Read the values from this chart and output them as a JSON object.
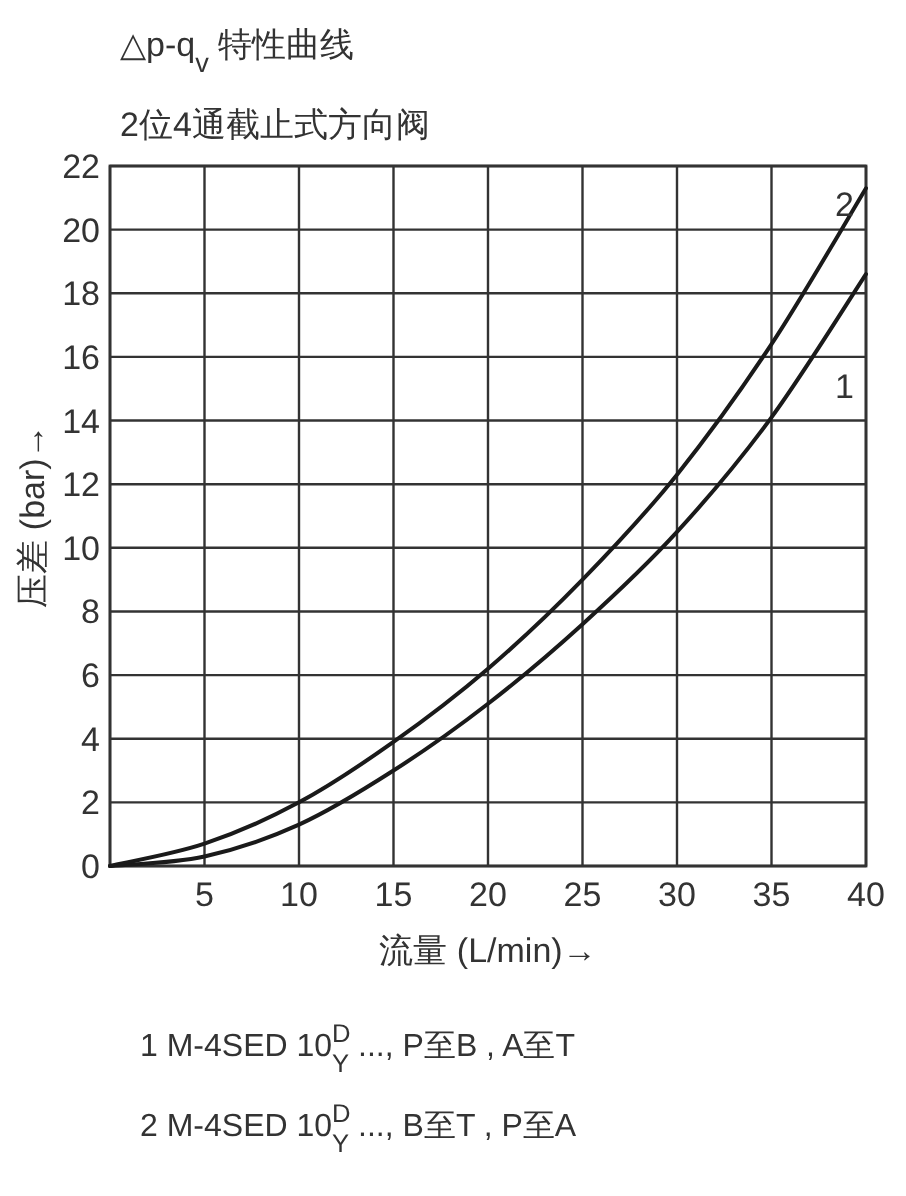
{
  "chart_data": {
    "type": "line",
    "title": "△p-q$_{v}$ 特性曲线",
    "subtitle": "2位4通截止式方向阀",
    "xlabel": "流量 (L/min)→",
    "ylabel": "压差 (bar)→",
    "xlim": [
      0,
      40
    ],
    "xticks": [
      {
        "value": 0,
        "label": null
      },
      5,
      10,
      15,
      20,
      25,
      30,
      35,
      40
    ],
    "ylim": [
      0,
      22
    ],
    "yticks": [
      0,
      2,
      4,
      6,
      8,
      10,
      12,
      14,
      16,
      18,
      20,
      22
    ],
    "grid": true,
    "x": [
      0,
      5,
      10,
      15,
      20,
      25,
      30,
      35,
      40
    ],
    "series": [
      {
        "name": "1",
        "color": "#1a1a1a",
        "values": [
          0,
          0.3,
          1.3,
          3.0,
          5.1,
          7.6,
          10.5,
          14.1,
          18.6
        ]
      },
      {
        "name": "2",
        "color": "#1a1a1a",
        "values": [
          0,
          0.7,
          2.0,
          3.9,
          6.2,
          9.0,
          12.3,
          16.4,
          21.3
        ]
      }
    ],
    "annotations": [
      "1 M-4SED 10$^{D}$$_{Y}$ ..., P至B , A至T",
      "2 M-4SED 10$^{D}$$_{Y}$ ..., B至T , P至A"
    ]
  }
}
